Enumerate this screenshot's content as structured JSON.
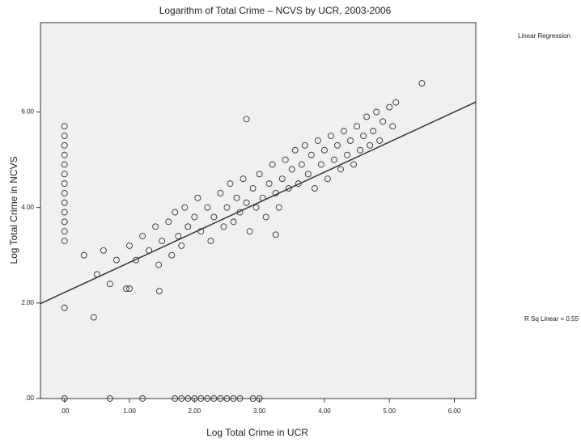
{
  "chart_data": {
    "type": "scatter",
    "title": "Logarithm of Total Crime – NCVS by UCR, 2003-2006",
    "x_label": "Log Total Crime in UCR",
    "y_label": "Log Total Crime in NCVS",
    "legend_title": "Linear Regression",
    "fit_label": "R Sq Linear = 0.55",
    "color": "#333333",
    "fit": {
      "intercept": 2.22,
      "slope": 0.63
    },
    "xlim": [
      -0.37,
      6.33
    ],
    "ylim": [
      0,
      7.87
    ],
    "xticks": [
      {
        "value": 0,
        "label": ".00"
      },
      {
        "value": 1,
        "label": "1.00"
      },
      {
        "value": 2,
        "label": "2.00"
      },
      {
        "value": 3,
        "label": "3.00"
      },
      {
        "value": 4,
        "label": "4.00"
      },
      {
        "value": 5,
        "label": "5.00"
      },
      {
        "value": 6,
        "label": "6.00"
      }
    ],
    "yticks": [
      {
        "value": 0,
        "label": ".00"
      },
      {
        "value": 2,
        "label": "2.00"
      },
      {
        "value": 4,
        "label": "4.00"
      },
      {
        "value": 6,
        "label": "6.00"
      }
    ],
    "x": [
      0,
      0,
      0,
      0,
      0,
      0,
      0,
      0,
      0,
      0,
      0,
      0,
      0,
      0,
      0,
      0.7,
      1.2,
      1.7,
      1.8,
      1.9,
      2.0,
      2.1,
      2.2,
      2.3,
      2.4,
      2.5,
      2.6,
      2.7,
      2.9,
      3.0,
      0.3,
      0.5,
      0.6,
      0.7,
      0.8,
      0.95,
      1.0,
      1.1,
      1.2,
      1.3,
      1.4,
      1.45,
      1.5,
      1.6,
      1.65,
      1.7,
      1.75,
      1.8,
      1.85,
      1.9,
      2.0,
      2.05,
      2.1,
      2.2,
      2.25,
      2.3,
      2.4,
      2.45,
      2.5,
      2.55,
      2.6,
      2.65,
      2.7,
      2.75,
      2.8,
      2.85,
      2.9,
      2.95,
      3.0,
      3.05,
      3.1,
      3.15,
      3.2,
      3.25,
      3.3,
      3.35,
      3.4,
      3.45,
      3.5,
      3.55,
      3.6,
      3.65,
      3.7,
      3.75,
      3.8,
      3.85,
      3.9,
      3.95,
      4.0,
      4.05,
      4.1,
      4.15,
      4.2,
      4.25,
      4.3,
      4.35,
      4.4,
      4.45,
      4.5,
      4.55,
      4.6,
      4.65,
      4.7,
      4.75,
      4.8,
      4.85,
      4.9,
      5.0,
      5.05,
      5.1,
      3.25,
      5.5,
      2.8,
      0.45,
      1.46,
      1.0
    ],
    "y": [
      3.3,
      3.5,
      3.7,
      3.9,
      4.1,
      4.3,
      4.5,
      4.7,
      4.9,
      5.1,
      5.3,
      5.5,
      5.7,
      1.9,
      0,
      0,
      0,
      0,
      0,
      0,
      0,
      0,
      0,
      0,
      0,
      0,
      0,
      0,
      0,
      0,
      3.0,
      2.6,
      3.1,
      2.4,
      2.9,
      2.3,
      3.2,
      2.9,
      3.4,
      3.1,
      3.6,
      2.8,
      3.3,
      3.7,
      3.0,
      3.9,
      3.4,
      3.2,
      4.0,
      3.6,
      3.8,
      4.2,
      3.5,
      4.0,
      3.3,
      3.8,
      4.3,
      3.6,
      4.0,
      4.5,
      3.7,
      4.2,
      3.9,
      4.6,
      4.1,
      3.5,
      4.4,
      4.0,
      4.7,
      4.2,
      3.8,
      4.5,
      4.9,
      4.3,
      4.0,
      4.6,
      5.0,
      4.4,
      4.8,
      5.2,
      4.5,
      4.9,
      5.3,
      4.7,
      5.1,
      4.4,
      5.4,
      4.9,
      5.2,
      4.6,
      5.5,
      5.0,
      5.3,
      4.8,
      5.6,
      5.1,
      5.4,
      4.9,
      5.7,
      5.2,
      5.5,
      5.9,
      5.3,
      5.6,
      6.0,
      5.4,
      5.8,
      6.1,
      5.7,
      6.2,
      3.43,
      6.6,
      5.85,
      1.7,
      2.25,
      2.3
    ]
  }
}
